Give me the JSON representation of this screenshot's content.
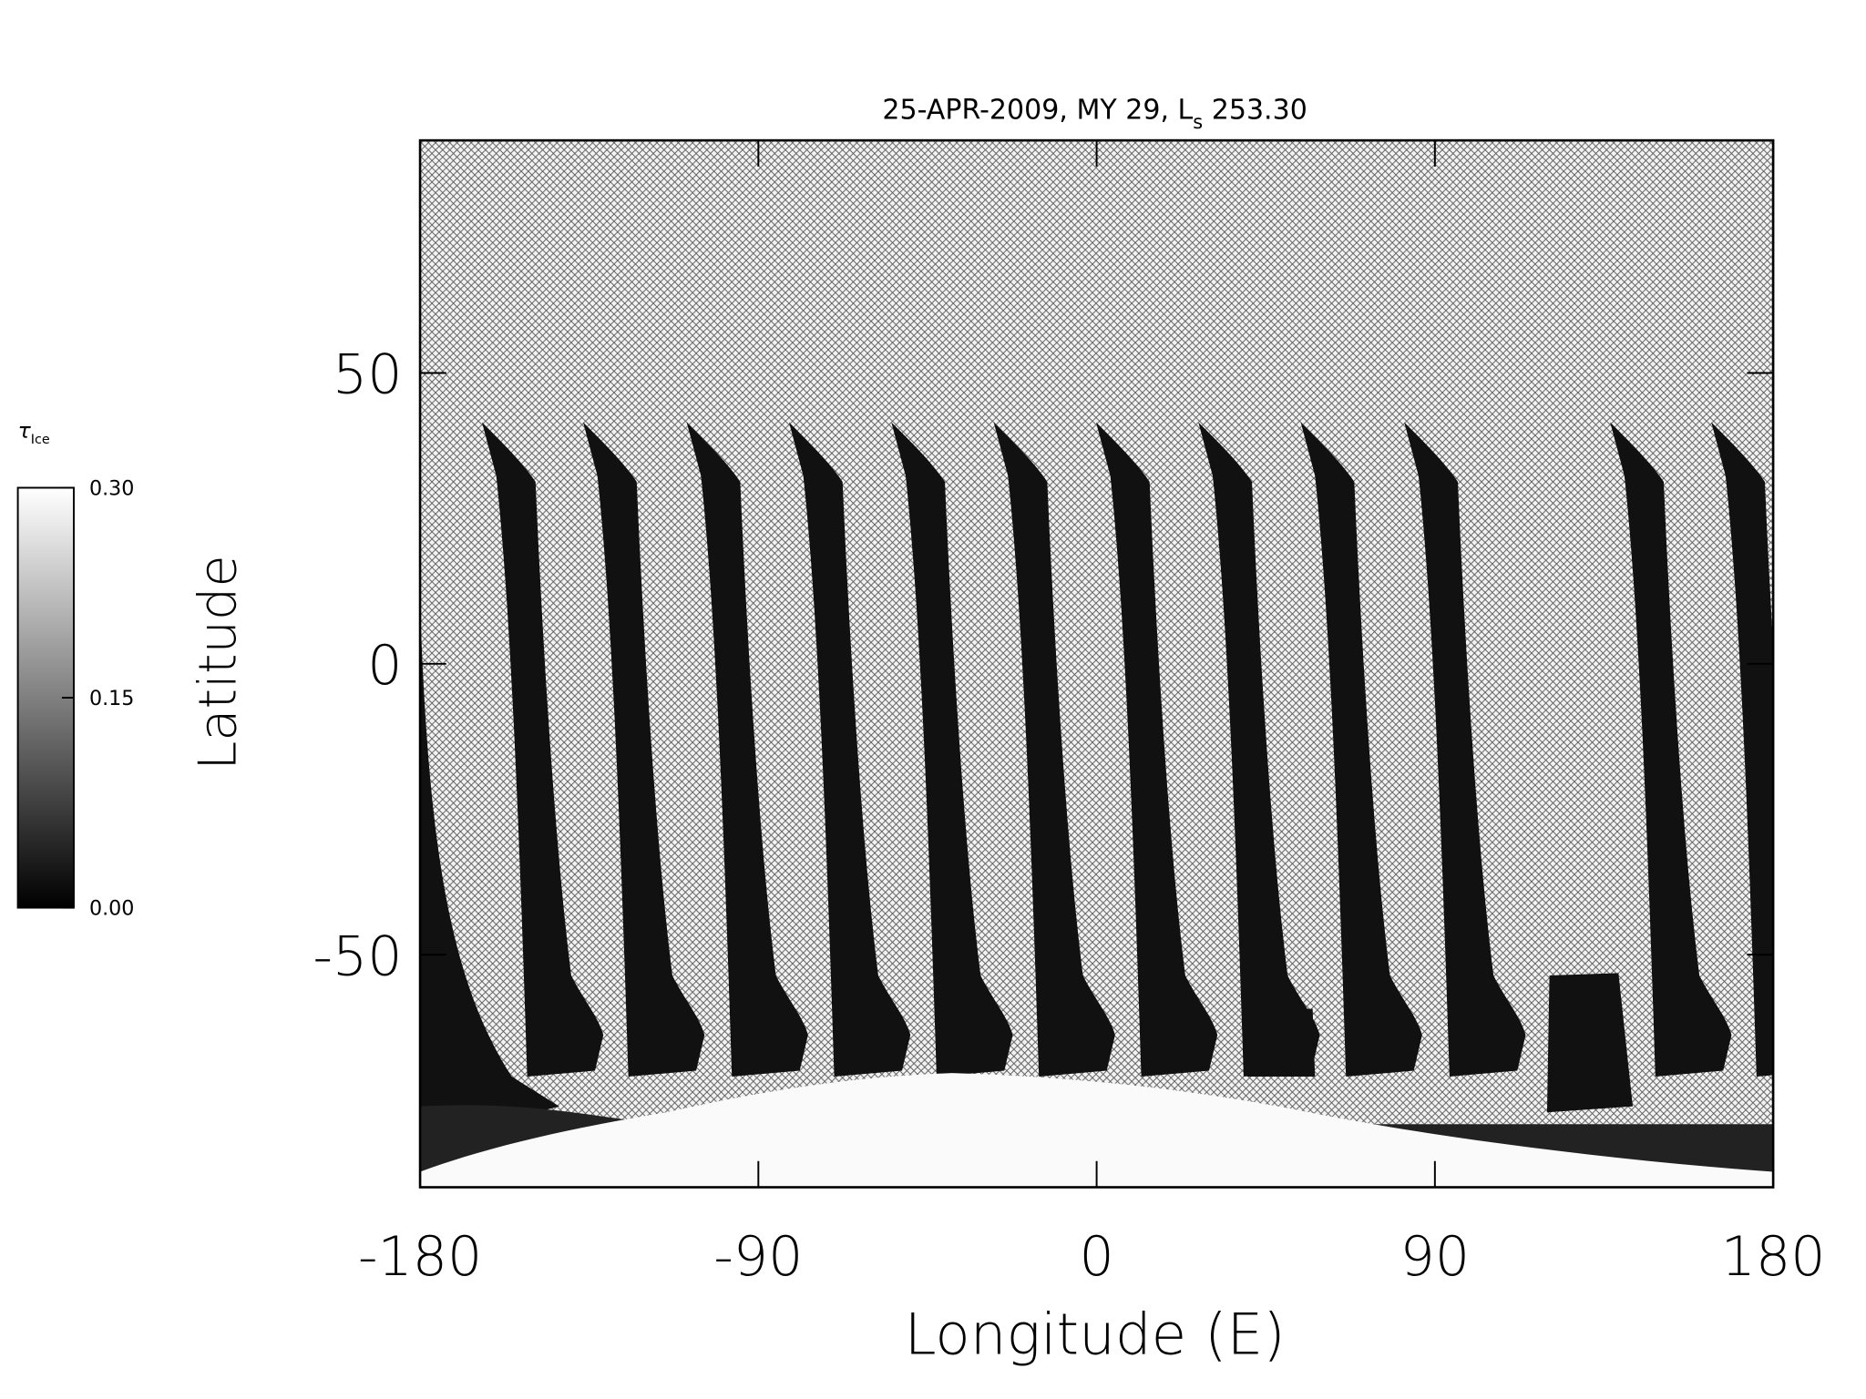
{
  "chart_data": {
    "type": "map",
    "title": "25-APR-2009, MY 29,  L",
    "title_subscript": "s",
    "title_suffix": " 253.30",
    "x_label": "Longitude (E)",
    "y_label": "Latitude",
    "xlim": [
      -180,
      180
    ],
    "ylim": [
      -90,
      90
    ],
    "xticks": [
      -180,
      -90,
      0,
      90,
      180
    ],
    "yticks": [
      -50,
      0,
      50
    ],
    "colorbar": {
      "label": "τ",
      "label_subscript": "Ice",
      "lim": [
        0,
        0.3
      ],
      "ticks": [
        {
          "value": 0,
          "label": "0.00"
        },
        {
          "value": 0.15,
          "label": "0.15"
        },
        {
          "value": 0.3,
          "label": "0.30"
        }
      ],
      "colors": [
        "#000000",
        "#ffffff"
      ]
    }
  }
}
